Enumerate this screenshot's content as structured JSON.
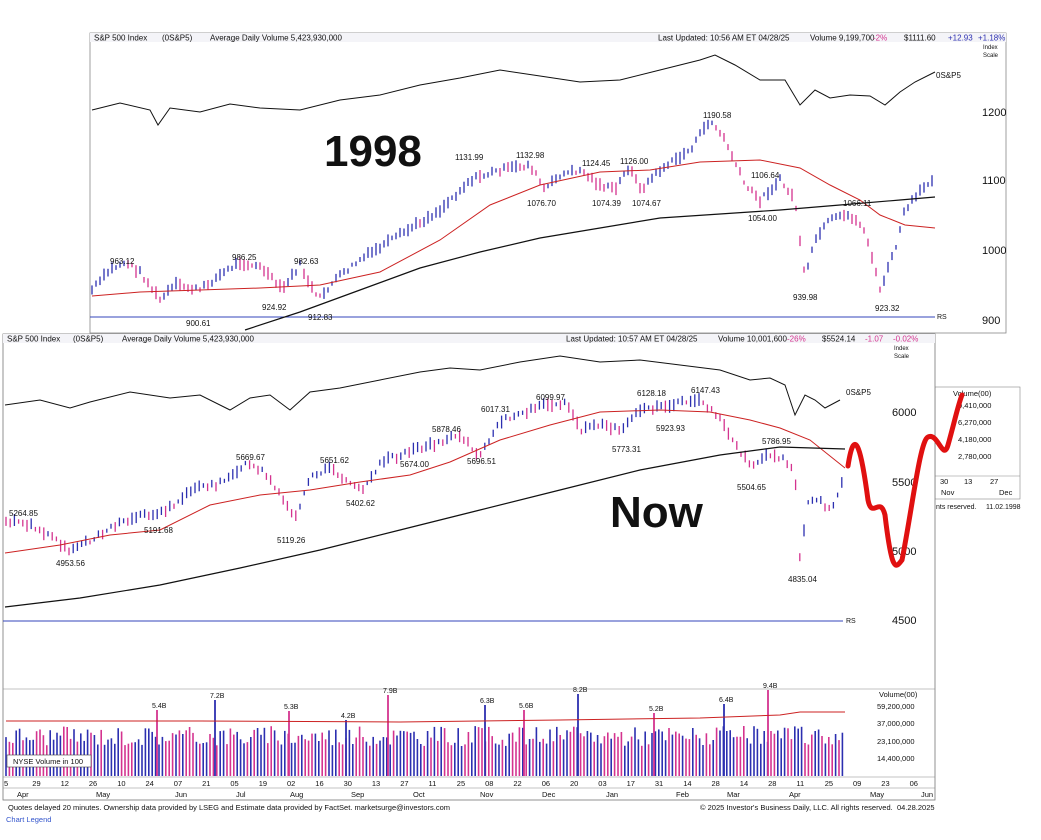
{
  "top_header": {
    "index": "S&P 500 Index",
    "symbol": "(0S&P5)",
    "avg_vol": "Average Daily Volume 5,423,930,000",
    "updated": "Last Updated: 10:56 AM ET 04/28/25",
    "volume": "Volume 9,199,700",
    "vol_pct": "-2%",
    "price": "$1111.60",
    "change": "+12.93",
    "change_pct": "+1.18%",
    "index_label": "Index",
    "scale_label": "Scale"
  },
  "top_overlay": {
    "big_year": "1998",
    "rs_line_label": "0S&P5",
    "rs": "RS"
  },
  "top_axis": {
    "ticks": [
      "1200",
      "1100",
      "1000",
      "900"
    ]
  },
  "top_annotations": [
    "963.12",
    "986.25",
    "982.63",
    "924.92",
    "900.61",
    "912.83",
    "1131.99",
    "1132.98",
    "1124.45",
    "1126.00",
    "1076.70",
    "1074.39",
    "1074.67",
    "1190.58",
    "1106.64",
    "1054.00",
    "1066.11",
    "939.98",
    "923.32"
  ],
  "top_peek": {
    "vol_label": "Volume(00)",
    "vol_ticks": [
      "9,410,000",
      "6,270,000",
      "4,180,000",
      "2,780,000"
    ],
    "dates": [
      "30",
      "13",
      "27"
    ],
    "months": [
      "Nov",
      "Dec"
    ],
    "rights": "nts reserved.",
    "date": "11.02.1998"
  },
  "bottom_header": {
    "index": "S&P 500 Index",
    "symbol": "(0S&P5)",
    "avg_vol": "Average Daily Volume 5,423,930,000",
    "updated": "Last Updated: 10:57 AM ET 04/28/25",
    "volume": "Volume 10,001,600",
    "vol_pct": "-26%",
    "price": "$5524.14",
    "change": "-1.07",
    "change_pct": "-0.02%",
    "index_label": "Index",
    "scale_label": "Scale"
  },
  "bottom_overlay": {
    "big_word": "Now",
    "rs_line_label": "0S&P5",
    "rs": "RS"
  },
  "bottom_annotations": [
    "5264.85",
    "4953.56",
    "5191.68",
    "5669.67",
    "5119.26",
    "5651.62",
    "5402.62",
    "5674.00",
    "5878.46",
    "5696.51",
    "6017.31",
    "6099.97",
    "6128.18",
    "5923.93",
    "5773.31",
    "6147.43",
    "5504.65",
    "5786.95",
    "4835.04"
  ],
  "volume_panel": {
    "title": "Volume(00)",
    "ticks": [
      "59,200,000",
      "37,000,000",
      "23,100,000",
      "14,400,000"
    ],
    "legend": "NYSE Volume in 100",
    "labels": [
      "5.4B",
      "7.2B",
      "5.3B",
      "4.2B",
      "7.9B",
      "6.3B",
      "5.6B",
      "8.2B",
      "5.2B",
      "6.4B",
      "9.4B"
    ]
  },
  "x_axis": {
    "days": [
      "5",
      "29",
      "12",
      "26",
      "10",
      "24",
      "07",
      "21",
      "05",
      "19",
      "02",
      "16",
      "30",
      "13",
      "27",
      "11",
      "25",
      "08",
      "22",
      "06",
      "20",
      "03",
      "17",
      "31",
      "14",
      "28",
      "14",
      "28",
      "11",
      "25",
      "09",
      "23",
      "06"
    ],
    "months": [
      "Apr",
      "May",
      "Jun",
      "Jul",
      "Aug",
      "Sep",
      "Oct",
      "Nov",
      "Dec",
      "Jan",
      "Feb",
      "Mar",
      "Apr",
      "May",
      "Jun"
    ]
  },
  "footer": {
    "left": "Quotes delayed 20 minutes. Ownership data provided by LSEG and Estimate data provided by FactSet. marketsurge@investors.com",
    "right": "© 2025 Investor's Business Daily, LLC. All rights reserved.",
    "date": "04.28.2025",
    "legend_link": "Chart Legend"
  },
  "colors": {
    "up_bar": "#2c2fb0",
    "down_bar": "#d4338f",
    "moving_avg_50": "#cc2222",
    "moving_avg_200": "#111111",
    "rs_line": "#1a1a9a",
    "drawn_projection": "#e01010"
  },
  "chart_data": [
    {
      "type": "line",
      "title": "S&P 500 Index (0S&P5)",
      "ylim": [
        880,
        1240
      ],
      "annotated_prices": [
        963.12,
        986.25,
        982.63,
        924.92,
        900.61,
        912.83,
        1131.99,
        1132.98,
        1124.45,
        1126.0,
        1076.7,
        1074.39,
        1074.67,
        1190.58,
        1106.64,
        1054.0,
        1066.11,
        939.98,
        923.32
      ],
      "y_ticks": [
        1200,
        1100,
        1000,
        900
      ]
    },
    {
      "type": "line",
      "title": "S&P 500 Index (0S&P5)",
      "ylim": [
        4400,
        6300
      ],
      "annotated_prices": [
        5264.85,
        4953.56,
        5191.68,
        5669.67,
        5119.26,
        5651.62,
        5402.62,
        5674.0,
        5878.46,
        5696.51,
        6017.31,
        6099.97,
        6128.18,
        5923.93,
        5773.31,
        6147.43,
        5504.65,
        5786.95,
        4835.04
      ],
      "y_ticks": [
        6000,
        5500,
        5000,
        4500
      ]
    },
    {
      "type": "bar",
      "ylabel": "Volume(00)",
      "series": [
        {
          "name": "NYSE Volume in 100",
          "peak_labels": [
            "5.4B",
            "7.2B",
            "5.3B",
            "4.2B",
            "7.9B",
            "6.3B",
            "5.6B",
            "8.2B",
            "5.2B",
            "6.4B",
            "9.4B"
          ]
        }
      ]
    }
  ]
}
